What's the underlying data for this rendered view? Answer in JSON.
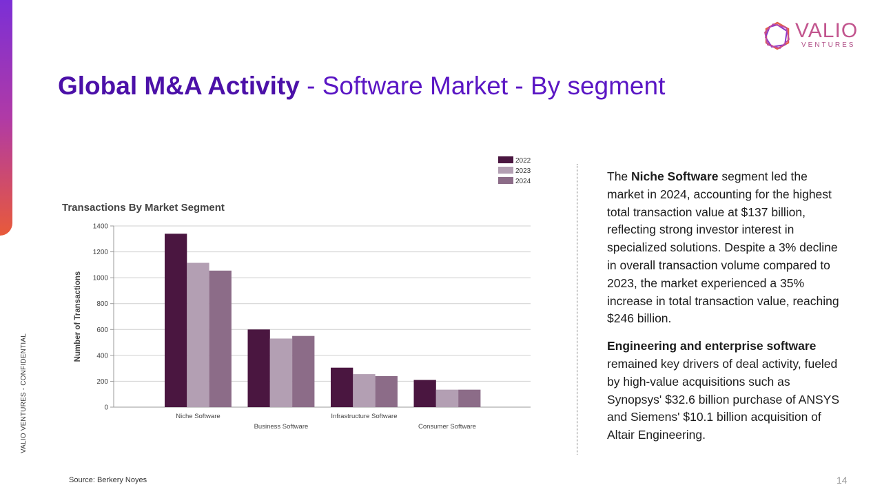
{
  "slide": {
    "side_label": "VALIO VENTURES - CONFIDENTIAL",
    "logo_main": "VALIO",
    "logo_sub": "VENTURES",
    "title_bold": "Global M&A Activity",
    "title_rest": " - Software Market - By segment",
    "source": "Source: Berkery Noyes",
    "page_number": "14",
    "accent_colors": [
      "#7b2fd6",
      "#b03aa6",
      "#e85a3a"
    ]
  },
  "text": {
    "p1_pre": "The ",
    "p1_bold": "Niche Software",
    "p1_post": " segment led the market in 2024, accounting for the highest total transaction value at $137 billion, reflecting strong investor interest in specialized solutions. Despite a 3% decline in overall transaction volume compared to 2023, the market experienced a 35% increase in total transaction value, reaching $246 billion.",
    "p2_bold": "Engineering and enterprise software",
    "p2_post": " remained key drivers of deal activity, fueled by high-value acquisitions such as Synopsys' $32.6 billion purchase of ANSYS and Siemens' $10.1 billion acquisition of Altair Engineering."
  },
  "chart_data": {
    "type": "bar",
    "title": "Transactions By Market Segment",
    "xlabel": "",
    "ylabel": "Number of Transactions",
    "ylim": [
      0,
      1400
    ],
    "yticks": [
      0,
      200,
      400,
      600,
      800,
      1000,
      1200,
      1400
    ],
    "grid": true,
    "legend_position": "top-right",
    "categories": [
      "Niche Software",
      "Business Software",
      "Infrastructure Software",
      "Consumer Software"
    ],
    "series": [
      {
        "name": "2022",
        "color": "#4a1640",
        "values": [
          1340,
          600,
          305,
          210
        ]
      },
      {
        "name": "2023",
        "color": "#b39fb3",
        "values": [
          1115,
          530,
          255,
          135
        ]
      },
      {
        "name": "2024",
        "color": "#8c6c88",
        "values": [
          1055,
          550,
          240,
          135
        ]
      }
    ]
  }
}
